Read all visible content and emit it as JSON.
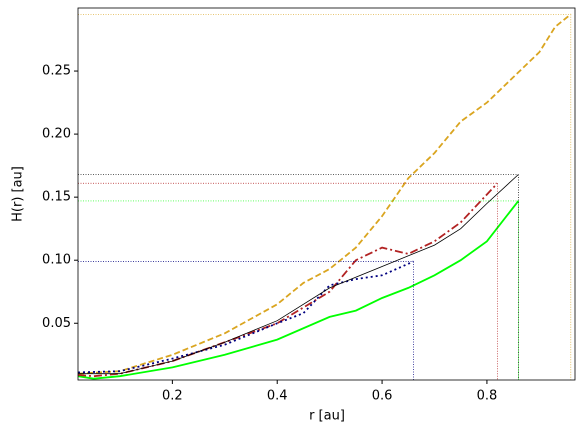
{
  "chart_data": {
    "type": "line",
    "xlabel": "r [au]",
    "ylabel": "H(r) [au]",
    "xlim": [
      0.02,
      0.968
    ],
    "ylim": [
      0.005,
      0.3
    ],
    "xticks": [
      0.2,
      0.4,
      0.6,
      0.8
    ],
    "yticks": [
      0.05,
      {
        "value": 0.1,
        "label": "0.10"
      },
      0.15,
      {
        "value": 0.2,
        "label": "0.20"
      },
      0.25
    ],
    "series": [
      {
        "color": "#daa520",
        "dash": "6,3",
        "width": 1.8,
        "x": [
          0.02,
          0.1,
          0.2,
          0.3,
          0.4,
          0.45,
          0.5,
          0.55,
          0.6,
          0.65,
          0.7,
          0.75,
          0.8,
          0.85,
          0.9,
          0.93,
          0.96
        ],
        "values": [
          0.01,
          0.012,
          0.025,
          0.042,
          0.065,
          0.082,
          0.093,
          0.11,
          0.135,
          0.165,
          0.185,
          0.21,
          0.225,
          0.245,
          0.265,
          0.285,
          0.295
        ]
      },
      {
        "color": "#00ff00",
        "dash": "none",
        "width": 1.8,
        "x": [
          0.02,
          0.05,
          0.1,
          0.2,
          0.3,
          0.4,
          0.5,
          0.55,
          0.6,
          0.65,
          0.7,
          0.75,
          0.8,
          0.86
        ],
        "values": [
          0.008,
          0.006,
          0.008,
          0.015,
          0.025,
          0.037,
          0.055,
          0.06,
          0.07,
          0.078,
          0.088,
          0.1,
          0.115,
          0.147
        ]
      },
      {
        "color": "#b22222",
        "dash": "8,3,2,3",
        "width": 1.8,
        "x": [
          0.02,
          0.05,
          0.1,
          0.2,
          0.3,
          0.4,
          0.5,
          0.55,
          0.6,
          0.65,
          0.7,
          0.75,
          0.82
        ],
        "values": [
          0.009,
          0.008,
          0.01,
          0.02,
          0.035,
          0.05,
          0.075,
          0.1,
          0.11,
          0.105,
          0.115,
          0.13,
          0.161
        ]
      },
      {
        "color": "#000080",
        "dash": "2,3",
        "width": 1.8,
        "x": [
          0.02,
          0.1,
          0.2,
          0.3,
          0.4,
          0.45,
          0.5,
          0.55,
          0.6,
          0.66
        ],
        "values": [
          0.011,
          0.012,
          0.022,
          0.033,
          0.05,
          0.058,
          0.08,
          0.085,
          0.088,
          0.099
        ]
      },
      {
        "color": "#000000",
        "dash": "none",
        "width": 0.8,
        "x": [
          0.02,
          0.1,
          0.2,
          0.3,
          0.4,
          0.5,
          0.6,
          0.7,
          0.75,
          0.8,
          0.86
        ],
        "values": [
          0.01,
          0.01,
          0.02,
          0.035,
          0.052,
          0.078,
          0.095,
          0.112,
          0.125,
          0.145,
          0.168
        ]
      }
    ]
  }
}
